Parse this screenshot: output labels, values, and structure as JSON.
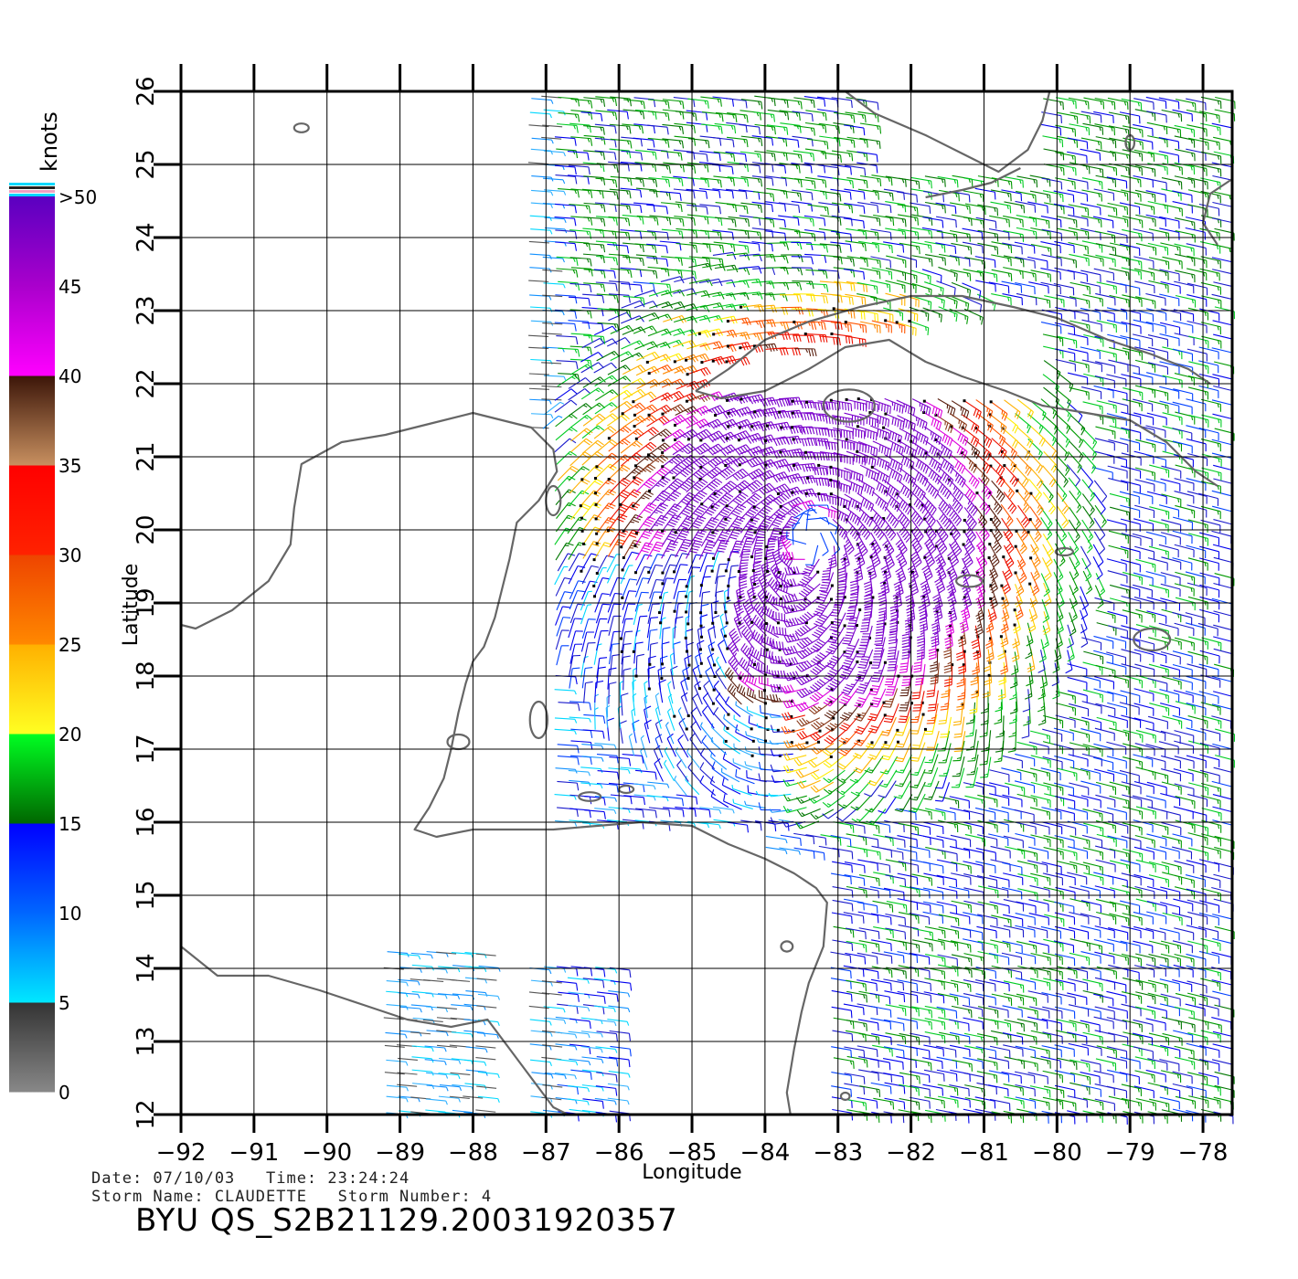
{
  "map": {
    "lon_range": [
      -92,
      -77.6
    ],
    "lat_range": [
      12,
      26
    ],
    "x_ticks": [
      "-92",
      "-91",
      "-90",
      "-89",
      "-88",
      "-87",
      "-86",
      "-85",
      "-84",
      "-83",
      "-82",
      "-81",
      "-80",
      "-79",
      "-78"
    ],
    "y_ticks": [
      "12",
      "13",
      "14",
      "15",
      "16",
      "17",
      "18",
      "19",
      "20",
      "21",
      "22",
      "23",
      "24",
      "25",
      "26"
    ],
    "xlabel": "Longitude",
    "ylabel": "Latitude",
    "coast_color": "#666666",
    "grid_color": "#000000"
  },
  "colorbar": {
    "unit": "knots",
    "tick_labels": [
      "0",
      "5",
      "10",
      "15",
      "20",
      "25",
      "30",
      "35",
      "40",
      "45",
      ">50"
    ],
    "colors": {
      "0-5": [
        "#888888",
        "#333333"
      ],
      "5-10": [
        "#00e8ff",
        "#0066ff"
      ],
      "10-15": [
        "#0066ff",
        "#0000ff"
      ],
      "15-20": [
        "#006600",
        "#00ff22"
      ],
      "20-25": [
        "#ffff22",
        "#ffb000"
      ],
      "25-30": [
        "#ff8800",
        "#ee4400"
      ],
      "30-35": [
        "#ff2200",
        "#ff0000"
      ],
      "35-40": [
        "#c89060",
        "#3b1508"
      ],
      "40-45": [
        "#ff00ff",
        "#aa00cc"
      ],
      "45-50": [
        "#aa00cc",
        "#5a00c0"
      ]
    }
  },
  "info": {
    "date_line": "Date: 07/10/03   Time: 23:24:24",
    "storm_line": "Storm Name: CLAUDETTE   Storm Number: 4",
    "product_id": "BYU QS_S2B21129.20031920357"
  },
  "wind_field": {
    "description_units": "knots",
    "storm_center": {
      "lon": -83.4,
      "lat": 20.0
    },
    "max_speed_knots": 50,
    "coverage_lon": [
      -87.2,
      -77.6
    ],
    "coverage_lat": [
      12,
      26
    ]
  }
}
